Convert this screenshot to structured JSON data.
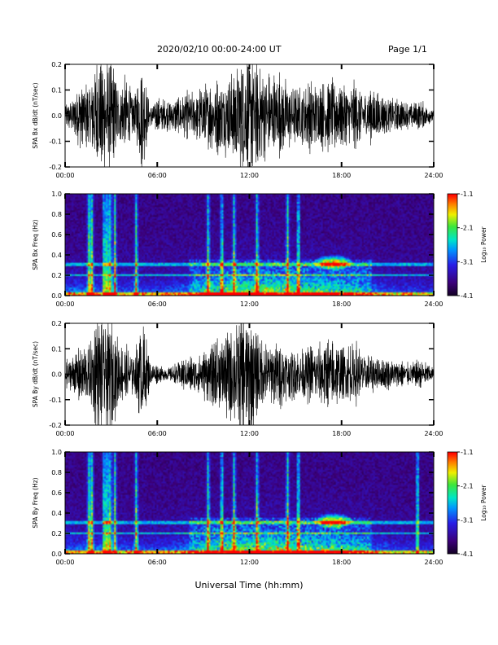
{
  "header": {
    "title": "2020/02/10  00:00-24:00 UT",
    "page": "Page 1/1"
  },
  "x_axis_title": "Universal Time (hh:mm)",
  "colorbar_label": "Log₁₀ Power",
  "chart_data": [
    {
      "type": "line",
      "ylabel": "SPA Bx dB/dt (nT/sec)",
      "xlim_hours": [
        0,
        24
      ],
      "ylim": [
        -0.2,
        0.2
      ],
      "x_ticks": [
        "00:00",
        "06:00",
        "12:00",
        "18:00",
        "24:00"
      ],
      "y_ticks": [
        "-0.2",
        "-0.1",
        "0.0",
        "0.1",
        "0.2"
      ],
      "envelope": {
        "hours": [
          0,
          0.5,
          1,
          1.5,
          2,
          2.5,
          3,
          3.5,
          4,
          4.5,
          5,
          5.5,
          6,
          6.5,
          7,
          7.5,
          8,
          8.5,
          9,
          9.5,
          10,
          10.5,
          11,
          11.5,
          12,
          12.5,
          13,
          13.5,
          14,
          14.5,
          15,
          15.5,
          16,
          16.5,
          17,
          17.5,
          18,
          18.5,
          19,
          19.5,
          20,
          20.5,
          21,
          21.5,
          22,
          22.5,
          23,
          23.5,
          24
        ],
        "amplitude": [
          0.04,
          0.06,
          0.12,
          0.1,
          0.2,
          0.2,
          0.2,
          0.1,
          0.14,
          0.06,
          0.2,
          0.04,
          0.06,
          0.05,
          0.05,
          0.07,
          0.08,
          0.08,
          0.1,
          0.12,
          0.12,
          0.14,
          0.17,
          0.2,
          0.2,
          0.18,
          0.16,
          0.14,
          0.14,
          0.12,
          0.1,
          0.1,
          0.12,
          0.1,
          0.12,
          0.12,
          0.1,
          0.1,
          0.12,
          0.08,
          0.09,
          0.07,
          0.06,
          0.06,
          0.05,
          0.04,
          0.05,
          0.04,
          0.02
        ]
      }
    },
    {
      "type": "heatmap",
      "ylabel": "SPA Bx Freq (Hz)",
      "xlim_hours": [
        0,
        24
      ],
      "ylim": [
        0,
        1.0
      ],
      "x_ticks": [
        "00:00",
        "06:00",
        "12:00",
        "18:00",
        "24:00"
      ],
      "y_ticks": [
        "0.0",
        "0.2",
        "0.4",
        "0.6",
        "0.8",
        "1.0"
      ],
      "zlim": [
        -4.1,
        -1.1
      ],
      "colorbar_ticks": [
        "-1.1",
        "-2.1",
        "-3.1",
        "-4.1"
      ],
      "colorbar_label": "Log₁₀ Power",
      "features": {
        "burst_hours": [
          1.5,
          1.7,
          2.5,
          2.7,
          2.9,
          3.2,
          4.6,
          9.3,
          10.2,
          11.0,
          12.5,
          14.5,
          15.2
        ],
        "horizontal_lines_hz": [
          0.2,
          0.3
        ],
        "blob": {
          "hour": 17.5,
          "freq_hz": 0.32
        }
      }
    },
    {
      "type": "line",
      "ylabel": "SPA By dB/dt (nT/sec)",
      "xlim_hours": [
        0,
        24
      ],
      "ylim": [
        -0.2,
        0.2
      ],
      "x_ticks": [
        "00:00",
        "06:00",
        "12:00",
        "18:00",
        "24:00"
      ],
      "y_ticks": [
        "-0.2",
        "-0.1",
        "0.0",
        "0.1",
        "0.2"
      ],
      "envelope": {
        "hours": [
          0,
          0.5,
          1,
          1.5,
          2,
          2.5,
          3,
          3.5,
          4,
          4.5,
          5,
          5.5,
          6,
          6.5,
          7,
          7.5,
          8,
          8.5,
          9,
          9.5,
          10,
          10.5,
          11,
          11.5,
          12,
          12.5,
          13,
          13.5,
          14,
          14.5,
          15,
          15.5,
          16,
          16.5,
          17,
          17.5,
          18,
          18.5,
          19,
          19.5,
          20,
          20.5,
          21,
          21.5,
          22,
          22.5,
          23,
          23.5,
          24
        ],
        "amplitude": [
          0.04,
          0.06,
          0.1,
          0.1,
          0.2,
          0.2,
          0.2,
          0.1,
          0.1,
          0.06,
          0.2,
          0.04,
          0.03,
          0.02,
          0.03,
          0.05,
          0.06,
          0.07,
          0.08,
          0.1,
          0.12,
          0.15,
          0.17,
          0.2,
          0.2,
          0.15,
          0.12,
          0.1,
          0.11,
          0.09,
          0.08,
          0.09,
          0.1,
          0.1,
          0.12,
          0.12,
          0.1,
          0.1,
          0.1,
          0.07,
          0.06,
          0.05,
          0.05,
          0.05,
          0.04,
          0.04,
          0.05,
          0.04,
          0.02
        ]
      }
    },
    {
      "type": "heatmap",
      "ylabel": "SPA By Freq (Hz)",
      "xlim_hours": [
        0,
        24
      ],
      "ylim": [
        0,
        1.0
      ],
      "x_ticks": [
        "00:00",
        "06:00",
        "12:00",
        "18:00",
        "24:00"
      ],
      "y_ticks": [
        "0.0",
        "0.2",
        "0.4",
        "0.6",
        "0.8",
        "1.0"
      ],
      "zlim": [
        -4.1,
        -1.1
      ],
      "colorbar_ticks": [
        "-1.1",
        "-2.1",
        "-3.1",
        "-4.1"
      ],
      "colorbar_label": "Log₁₀ Power",
      "features": {
        "burst_hours": [
          1.5,
          1.7,
          2.5,
          2.7,
          2.9,
          3.2,
          4.6,
          9.3,
          10.2,
          11.0,
          12.5,
          14.5,
          15.2,
          23.0
        ],
        "horizontal_lines_hz": [
          0.2,
          0.3
        ],
        "blob": {
          "hour": 17.5,
          "freq_hz": 0.32
        }
      }
    }
  ]
}
